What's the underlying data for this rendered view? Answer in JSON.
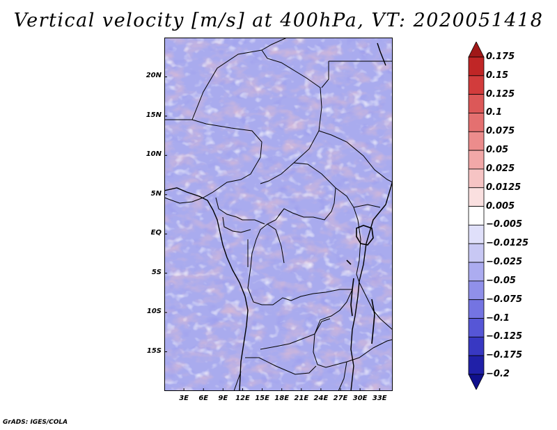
{
  "title": "Vertical velocity [m/s] at 400hPa, VT: 2020051418",
  "credit": "GrADS: IGES/COLA",
  "map": {
    "lon_range": [
      0,
      35
    ],
    "lat_range": [
      -20,
      25
    ],
    "lat_ticks": [
      "20N",
      "15N",
      "10N",
      "5N",
      "EQ",
      "5S",
      "10S",
      "15S"
    ],
    "lat_values": [
      20,
      15,
      10,
      5,
      0,
      -5,
      -10,
      -15
    ],
    "lon_ticks": [
      "3E",
      "6E",
      "9E",
      "12E",
      "15E",
      "18E",
      "21E",
      "24E",
      "27E",
      "30E",
      "33E"
    ],
    "lon_values": [
      3,
      6,
      9,
      12,
      15,
      18,
      21,
      24,
      27,
      30,
      33
    ]
  },
  "colorbar": {
    "labels": [
      "0.175",
      "0.15",
      "0.125",
      "0.1",
      "0.075",
      "0.05",
      "0.025",
      "0.0125",
      "0.005",
      "−0.005",
      "−0.0125",
      "−0.025",
      "−0.05",
      "−0.075",
      "−0.1",
      "−0.125",
      "−0.175",
      "−0.2"
    ],
    "colors": [
      "#a01818",
      "#c02626",
      "#d23c3c",
      "#dc5858",
      "#e47070",
      "#ec8c8c",
      "#f2a8a8",
      "#f6c4c4",
      "#fae0e0",
      "#ffffff",
      "#e0e0fa",
      "#c8c8f4",
      "#acacf0",
      "#9090ea",
      "#7474e2",
      "#5656d6",
      "#3838c2",
      "#2020a8",
      "#10108c"
    ]
  }
}
